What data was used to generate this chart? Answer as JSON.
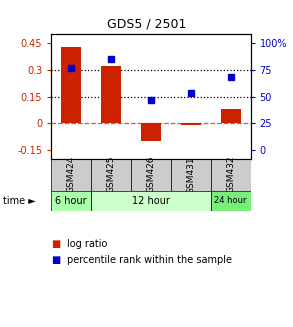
{
  "title": "GDS5 / 2501",
  "samples": [
    "GSM424",
    "GSM425",
    "GSM426",
    "GSM431",
    "GSM432"
  ],
  "log_ratio": [
    0.43,
    0.32,
    -0.1,
    -0.01,
    0.08
  ],
  "percentile_rank": [
    77,
    85,
    47,
    53,
    68
  ],
  "left_ylim": [
    -0.2,
    0.5
  ],
  "left_yticks": [
    -0.15,
    0,
    0.15,
    0.3,
    0.45
  ],
  "right_yticks_val": [
    -0.15,
    0,
    0.15,
    0.3,
    0.45
  ],
  "right_yticks_label": [
    "0",
    "25",
    "50",
    "75",
    "100%"
  ],
  "bar_color": "#cc2200",
  "square_color": "#0000cc",
  "dotted_lines": [
    0.15,
    0.3
  ],
  "zero_line": 0.0,
  "time_groups": [
    {
      "label": "6 hour",
      "start": 0,
      "end": 1,
      "color": "#aaffaa"
    },
    {
      "label": "12 hour",
      "start": 1,
      "end": 4,
      "color": "#ccffcc"
    },
    {
      "label": "24 hour",
      "start": 4,
      "end": 5,
      "color": "#77ee77"
    }
  ],
  "background_color": "#ffffff",
  "plot_bg_color": "#ffffff"
}
